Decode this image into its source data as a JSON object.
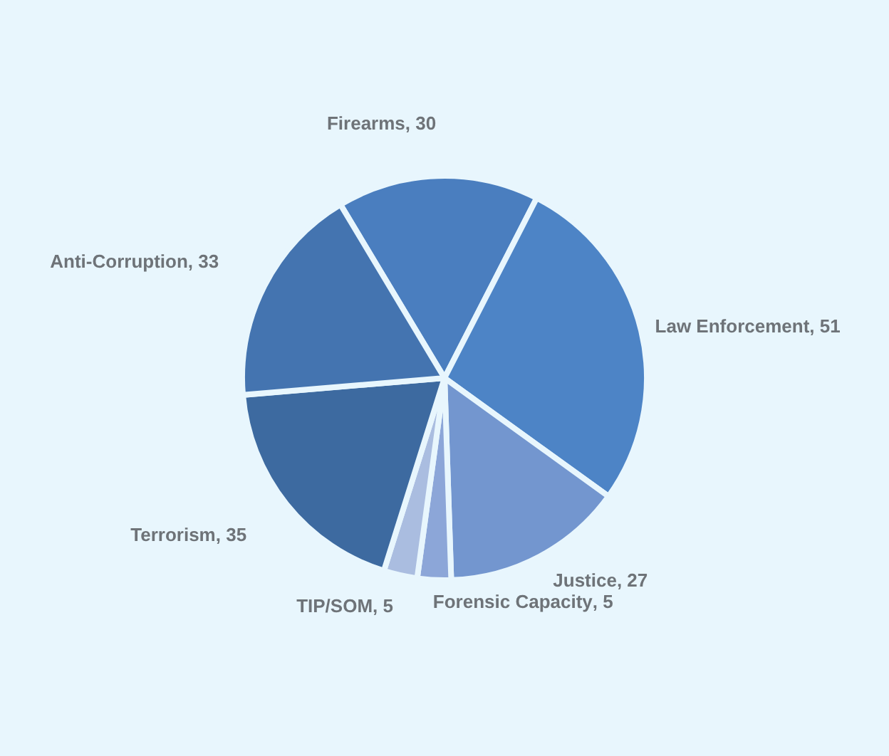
{
  "chart_data": {
    "type": "pie",
    "categories": [
      "Firearms",
      "Law Enforcement",
      "Justice",
      "Forensic Capacity",
      "TIP/SOM",
      "Terrorism",
      "Anti-Corruption"
    ],
    "values": [
      30,
      51,
      27,
      5,
      5,
      35,
      33
    ],
    "colors": [
      "#4a7ebf",
      "#4d84c6",
      "#7396cf",
      "#8ca6d8",
      "#aabde0",
      "#3d6aa0",
      "#4474b0"
    ],
    "value_labels": [
      ", 30",
      ", 51",
      ", 27",
      ", 5",
      ", 5",
      ", 35",
      ", 33"
    ]
  }
}
